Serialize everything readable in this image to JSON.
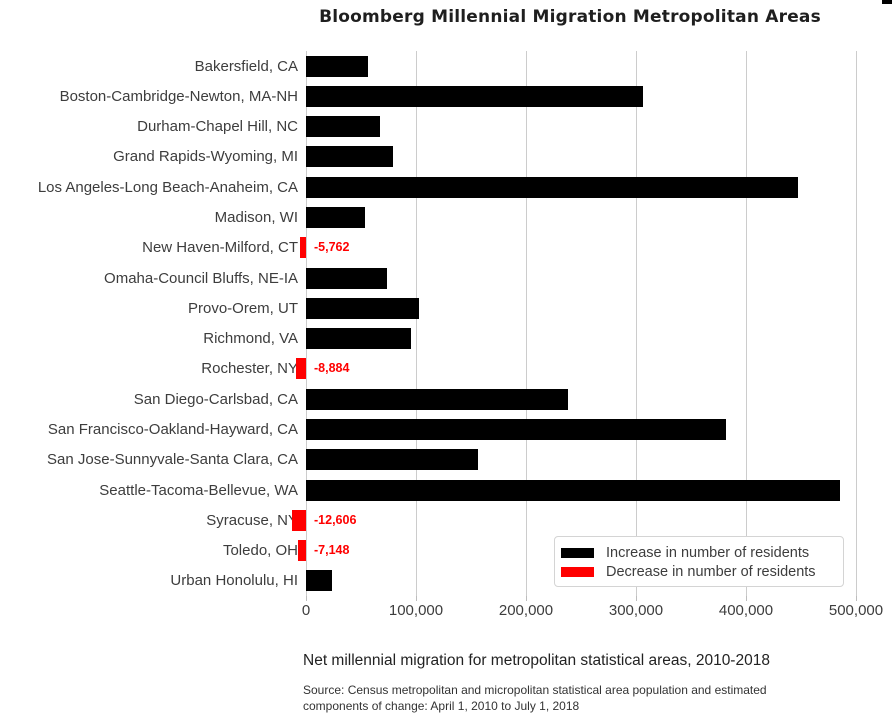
{
  "window": {
    "corner_mark": "clipped-black-element"
  },
  "chart_data": {
    "type": "bar",
    "orientation": "horizontal",
    "title": "Bloomberg Millennial Migration Metropolitan Areas",
    "categories": [
      "Bakersfield, CA",
      "Boston-Cambridge-Newton, MA-NH",
      "Durham-Chapel Hill, NC",
      "Grand Rapids-Wyoming, MI",
      "Los Angeles-Long Beach-Anaheim, CA",
      "Madison, WI",
      "New Haven-Milford, CT",
      "Omaha-Council Bluffs, NE-IA",
      "Provo-Orem, UT",
      "Richmond, VA",
      "Rochester, NY",
      "San Diego-Carlsbad, CA",
      "San Francisco-Oakland-Hayward, CA",
      "San Jose-Sunnyvale-Santa Clara, CA",
      "Seattle-Tacoma-Bellevue, WA",
      "Syracuse, NY",
      "Toledo, OH",
      "Urban Honolulu, HI"
    ],
    "values": [
      56000,
      306000,
      67000,
      79000,
      447000,
      54000,
      -5762,
      74000,
      103000,
      95000,
      -8884,
      238000,
      382000,
      156000,
      485000,
      -12606,
      -7148,
      24000
    ],
    "value_labels": [
      "",
      "",
      "",
      "",
      "",
      "",
      "-5,762",
      "",
      "",
      "",
      "-8,884",
      "",
      "",
      "",
      "",
      "-12,606",
      "-7,148",
      ""
    ],
    "x_ticks": [
      0,
      100000,
      200000,
      300000,
      400000,
      500000
    ],
    "x_tick_labels": [
      "0",
      "100,000",
      "200,000",
      "300,000",
      "400,000",
      "500,000"
    ],
    "xlim": [
      0,
      500000
    ],
    "grid": true,
    "legend": {
      "position": "lower right",
      "entries": [
        {
          "label": "Increase in number of residents",
          "color": "#000000"
        },
        {
          "label": "Decrease in number of residents",
          "color": "#ff0000"
        }
      ]
    },
    "colors": {
      "increase": "#000000",
      "decrease": "#ff0000",
      "gridline": "#cccccc",
      "axis_text": "#3d3d3d"
    },
    "caption": "Net millennial migration for metropolitan statistical areas, 2010-2018",
    "source": [
      "Source: Census metropolitan and micropolitan statistical area population and estimated",
      "components of change: April 1, 2010 to July 1, 2018"
    ]
  }
}
